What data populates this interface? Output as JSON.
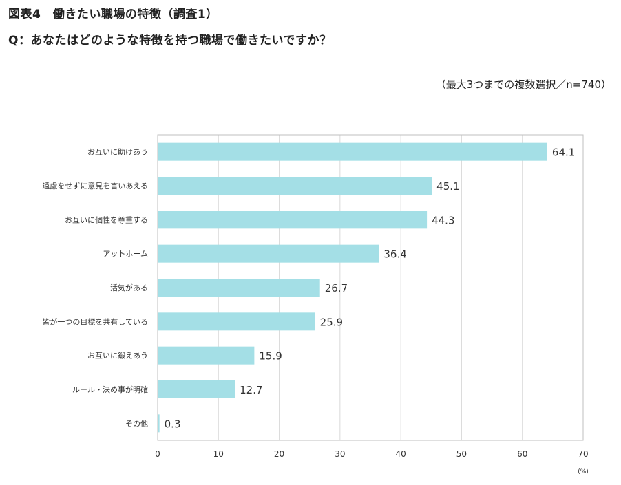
{
  "header": {
    "title": "図表4　働きたい職場の特徴（調査1）",
    "question": "Q：あなたはどのような特徴を持つ職場で働きたいですか？",
    "note": "（最大3つまでの複数選択／n=740）"
  },
  "colors": {
    "bar": "#a4dfe6",
    "grid": "#d9d9d9",
    "frame": "#bfbfbf"
  },
  "chart_data": {
    "type": "bar",
    "orientation": "horizontal",
    "categories": [
      "お互いに助けあう",
      "遠慮をせずに意見を言いあえる",
      "お互いに個性を尊重する",
      "アットホーム",
      "活気がある",
      "皆が一つの目標を共有している",
      "お互いに鍛えあう",
      "ルール・決め事が明確",
      "その他"
    ],
    "values": [
      64.1,
      45.1,
      44.3,
      36.4,
      26.7,
      25.9,
      15.9,
      12.7,
      0.3
    ],
    "value_labels": [
      "64.1",
      "45.1",
      "44.3",
      "36.4",
      "26.7",
      "25.9",
      "15.9",
      "12.7",
      "0.3"
    ],
    "xlim": [
      0,
      70
    ],
    "xticks": [
      0,
      10,
      20,
      30,
      40,
      50,
      60,
      70
    ],
    "unit": "(%)",
    "grid": true,
    "legend": "none"
  }
}
